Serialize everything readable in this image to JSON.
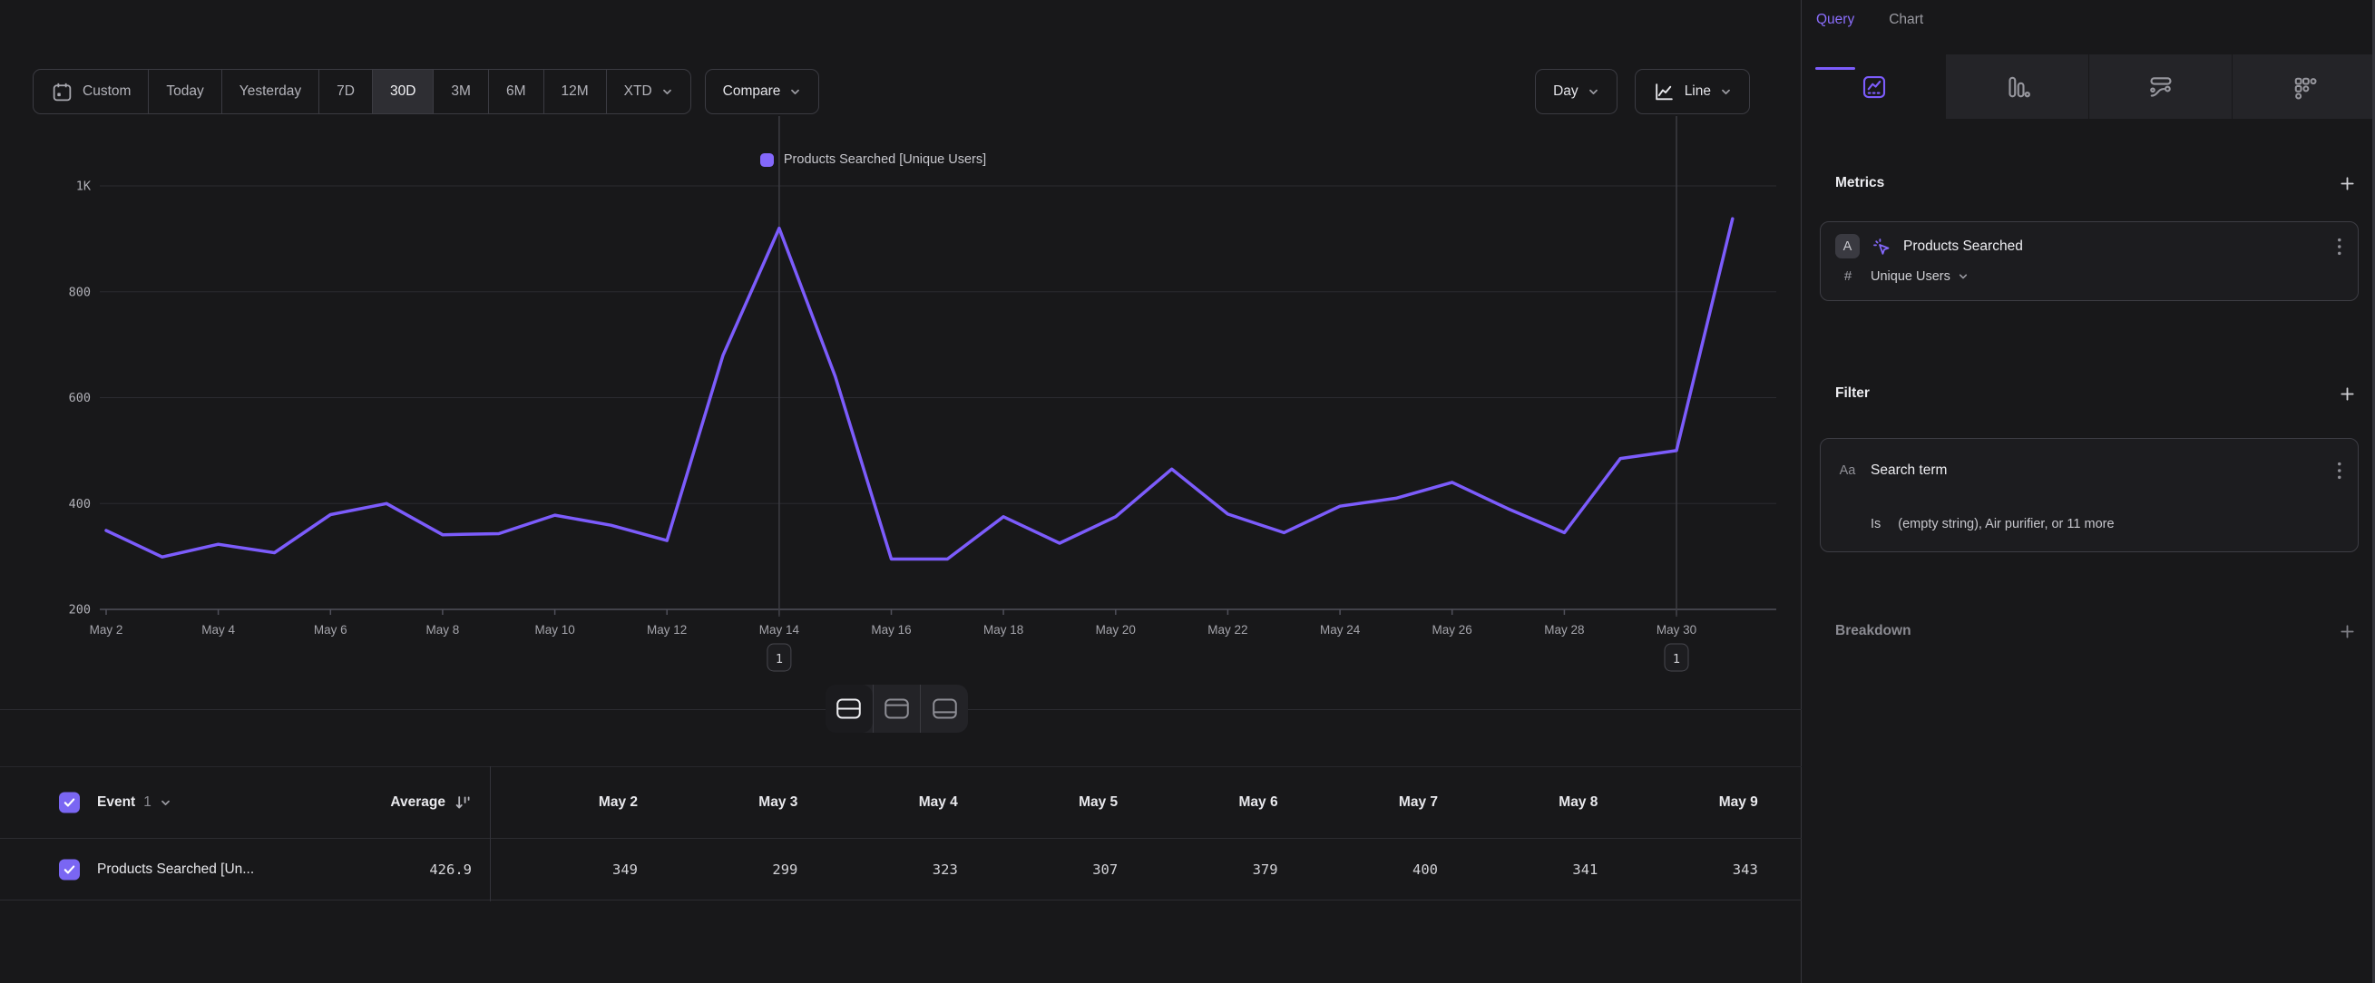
{
  "toolbar": {
    "ranges": [
      "Custom",
      "Today",
      "Yesterday",
      "7D",
      "30D",
      "3M",
      "6M",
      "12M",
      "XTD"
    ],
    "selected": "30D",
    "compare": "Compare",
    "granularity": "Day",
    "chart_type": "Line"
  },
  "chart_data": {
    "type": "line",
    "legend": "Products Searched [Unique Users]",
    "x": [
      "May 2",
      "May 3",
      "May 4",
      "May 5",
      "May 6",
      "May 7",
      "May 8",
      "May 9",
      "May 10",
      "May 11",
      "May 12",
      "May 13",
      "May 14",
      "May 15",
      "May 16",
      "May 17",
      "May 18",
      "May 19",
      "May 20",
      "May 21",
      "May 22",
      "May 23",
      "May 24",
      "May 25",
      "May 26",
      "May 27",
      "May 28",
      "May 29",
      "May 30",
      "May 31"
    ],
    "values": [
      349,
      299,
      323,
      307,
      379,
      400,
      341,
      343,
      378,
      359,
      330,
      680,
      920,
      640,
      295,
      295,
      375,
      325,
      375,
      465,
      380,
      345,
      395,
      410,
      440,
      390,
      345,
      485,
      500,
      938
    ],
    "ylim": [
      200,
      1000
    ],
    "y_ticks": [
      200,
      400,
      600,
      800,
      1000
    ],
    "y_tick_labels": [
      "200",
      "400",
      "600",
      "800",
      "1K"
    ],
    "x_tick_every": 2,
    "line_color": "#7c5cfc",
    "grid": true,
    "legend_position": "top-center",
    "annotations": [
      {
        "x": "May 14",
        "label": "1"
      },
      {
        "x": "May 30",
        "label": "1"
      }
    ]
  },
  "view_toggle": {
    "options": [
      "split-view",
      "chart-only",
      "table-only"
    ],
    "selected": "split-view"
  },
  "table": {
    "event_label": "Event",
    "event_count": "1",
    "average_label": "Average",
    "columns": [
      "May 2",
      "May 3",
      "May 4",
      "May 5",
      "May 6",
      "May 7",
      "May 8",
      "May 9"
    ],
    "rows": [
      {
        "label": "Products Searched [Un...",
        "checked": true,
        "average": "426.9",
        "values": [
          "349",
          "299",
          "323",
          "307",
          "379",
          "400",
          "341",
          "343"
        ]
      }
    ]
  },
  "panel": {
    "tabs": [
      {
        "label": "Query",
        "active": true
      },
      {
        "label": "Chart",
        "active": false
      }
    ],
    "viz_tabs": [
      {
        "icon": "insights-icon",
        "active": true
      },
      {
        "icon": "funnels-bar-icon",
        "active": false
      },
      {
        "icon": "flows-icon",
        "active": false
      },
      {
        "icon": "retention-grid-icon",
        "active": false
      }
    ],
    "metrics": {
      "title": "Metrics",
      "card": {
        "letter": "A",
        "event": "Products Searched",
        "agg_prefix": "#",
        "aggregation": "Unique Users"
      }
    },
    "filter": {
      "title": "Filter",
      "card": {
        "badge": "Aa",
        "property": "Search term",
        "operator": "Is",
        "value": "(empty string), Air purifier, or 11 more"
      }
    },
    "breakdown": {
      "title": "Breakdown"
    }
  },
  "colors": {
    "accent": "#7c5cfc",
    "legend_swatch": "#8468fb",
    "selected_range_bg": "#2e2e33",
    "background": "#18181a"
  }
}
